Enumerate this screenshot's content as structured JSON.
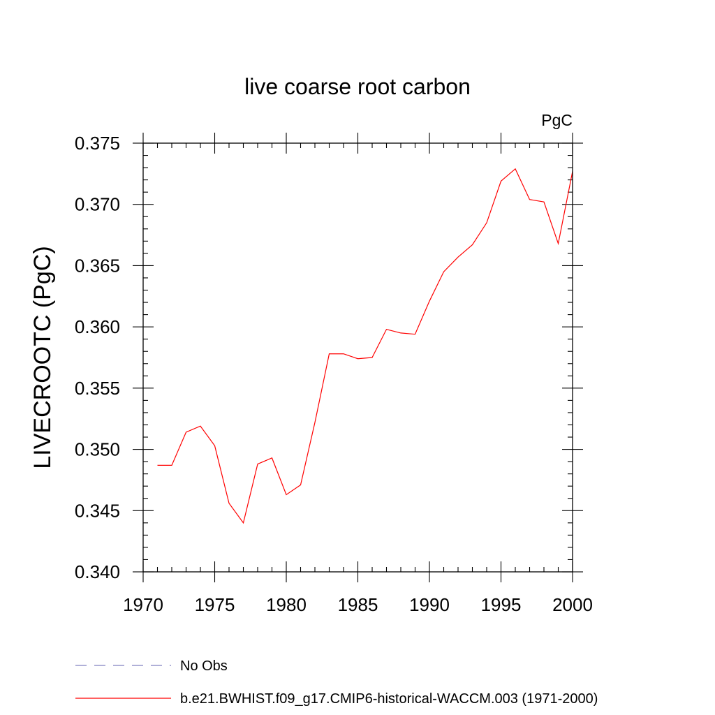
{
  "colors": {
    "series_line": "#ff0000",
    "obs_line": "#8080c0",
    "axis": "#000000"
  },
  "chart_data": {
    "type": "line",
    "title": "live coarse root carbon",
    "units": "PgC",
    "ylabel": "LIVECROOTC  (PgC)",
    "xlabel": "",
    "xlim": [
      1970,
      2000
    ],
    "ylim": [
      0.34,
      0.375
    ],
    "x_ticks": [
      1970,
      1975,
      1980,
      1985,
      1990,
      1995,
      2000
    ],
    "x_tick_labels": [
      "1970",
      "1975",
      "1980",
      "1985",
      "1990",
      "1995",
      "2000"
    ],
    "y_ticks": [
      0.34,
      0.345,
      0.35,
      0.355,
      0.36,
      0.365,
      0.37,
      0.375
    ],
    "y_tick_labels": [
      "0.340",
      "0.345",
      "0.350",
      "0.355",
      "0.360",
      "0.365",
      "0.370",
      "0.375"
    ],
    "grid": false,
    "legend_position": "bottom",
    "series": [
      {
        "name": "b.e21.BWHIST.f09_g17.CMIP6-historical-WACCM.003 (1971-2000)",
        "style": "solid",
        "color": "#ff0000",
        "x": [
          1971,
          1972,
          1973,
          1974,
          1975,
          1976,
          1977,
          1978,
          1979,
          1980,
          1981,
          1982,
          1983,
          1984,
          1985,
          1986,
          1987,
          1988,
          1989,
          1990,
          1991,
          1992,
          1993,
          1994,
          1995,
          1996,
          1997,
          1998,
          1999,
          2000
        ],
        "values": [
          0.3487,
          0.3487,
          0.3514,
          0.3519,
          0.3503,
          0.3456,
          0.344,
          0.3488,
          0.3493,
          0.3463,
          0.3471,
          0.3522,
          0.3578,
          0.3578,
          0.3574,
          0.3575,
          0.3598,
          0.3595,
          0.3594,
          0.3621,
          0.3645,
          0.3657,
          0.3667,
          0.3685,
          0.3719,
          0.3729,
          0.3704,
          0.3702,
          0.3668,
          0.3727
        ]
      },
      {
        "name": "No Obs",
        "style": "dashed",
        "color": "#8080c0",
        "x": [],
        "values": []
      }
    ]
  }
}
